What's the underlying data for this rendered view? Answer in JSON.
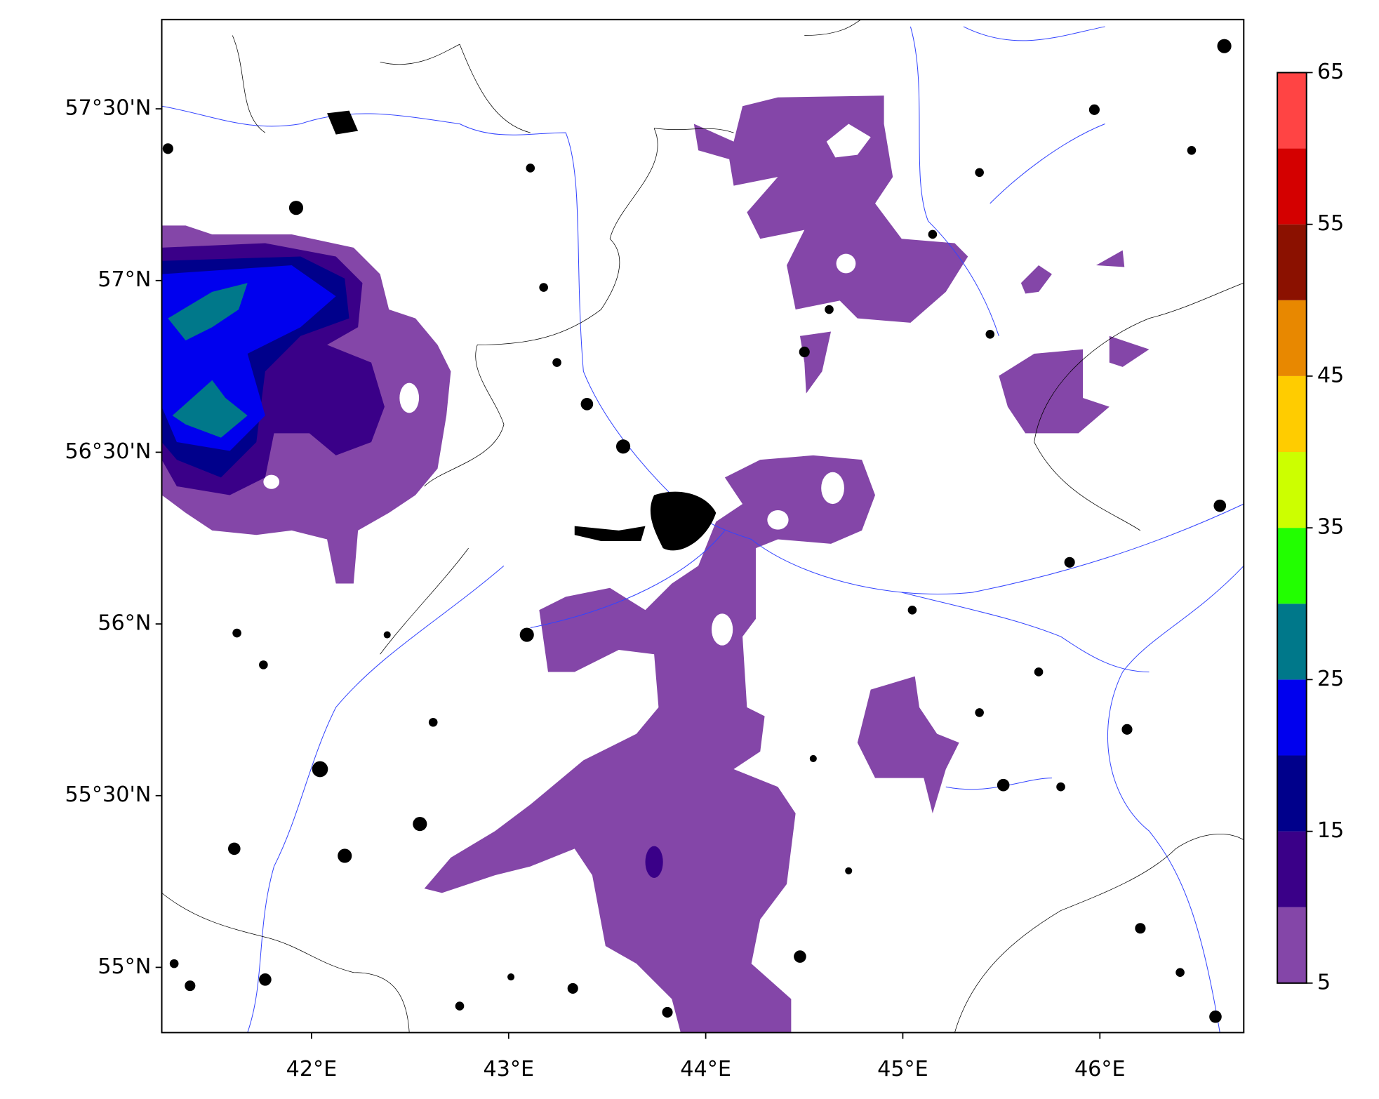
{
  "chart_data": {
    "type": "contour",
    "xlim": [
      41.24,
      46.73
    ],
    "ylim": [
      54.81,
      57.76
    ],
    "xticks": [
      {
        "value": 42,
        "label": "42°E"
      },
      {
        "value": 43,
        "label": "43°E"
      },
      {
        "value": 44,
        "label": "44°E"
      },
      {
        "value": 45,
        "label": "45°E"
      },
      {
        "value": 46,
        "label": "46°E"
      }
    ],
    "yticks": [
      {
        "value": 55,
        "label": "55°N"
      },
      {
        "value": 55.5,
        "label": "55°30'N"
      },
      {
        "value": 56,
        "label": "56°N"
      },
      {
        "value": 56.5,
        "label": "56°30'N"
      },
      {
        "value": 57,
        "label": "57°N"
      },
      {
        "value": 57.5,
        "label": "57°30'N"
      }
    ],
    "colorbar": {
      "levels": [
        5,
        10,
        15,
        20,
        25,
        30,
        35,
        40,
        45,
        50,
        55,
        60,
        65
      ],
      "colors": [
        "#8446a8",
        "#3a0088",
        "#00008b",
        "#0000ee",
        "#00788a",
        "#22ff00",
        "#ccff00",
        "#ffcc00",
        "#e88800",
        "#8b1100",
        "#d40000",
        "#ff4444"
      ],
      "ticks": [
        5,
        15,
        25,
        35,
        45,
        55,
        65
      ]
    }
  }
}
